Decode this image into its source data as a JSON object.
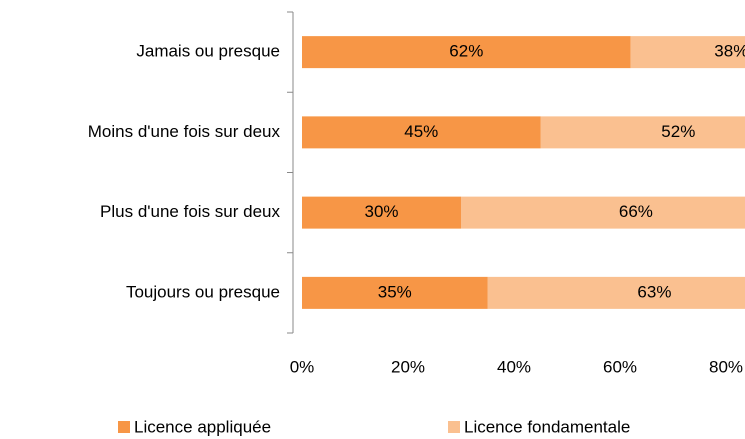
{
  "chart_data": {
    "type": "stacked-bar-horizontal",
    "categories": [
      "Jamais ou presque",
      "Moins d'une fois sur deux",
      "Plus d'une fois sur deux",
      "Toujours ou presque"
    ],
    "series": [
      {
        "name": "Licence appliquée",
        "color": "#f79646",
        "values": [
          62,
          45,
          30,
          35
        ],
        "value_labels": [
          "62%",
          "45%",
          "30%",
          "35%"
        ]
      },
      {
        "name": "Licence fondamentale",
        "color": "#fac090",
        "values": [
          38,
          52,
          66,
          63
        ],
        "value_labels": [
          "38%",
          "52%",
          "66%",
          "63%"
        ]
      }
    ],
    "xlim": [
      0,
      100
    ],
    "xticks": [
      {
        "value": 0,
        "label": "0%"
      },
      {
        "value": 20,
        "label": "20%"
      },
      {
        "value": 40,
        "label": "40%"
      },
      {
        "value": 60,
        "label": "60%"
      },
      {
        "value": 80,
        "label": "80%"
      }
    ],
    "legend": "bottom"
  }
}
